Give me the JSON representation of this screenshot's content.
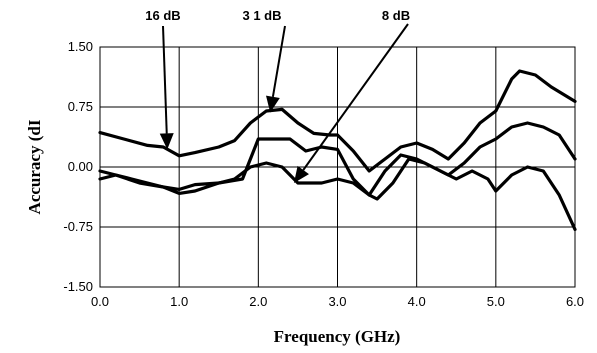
{
  "chart_data": {
    "type": "line",
    "title": "",
    "xlabel": "Frequency (GHz)",
    "ylabel": "Accuracy (dI",
    "xlim": [
      0,
      6
    ],
    "ylim": [
      -1.5,
      1.5
    ],
    "grid": true,
    "line_color": "#000000",
    "x_ticks": [
      "0.0",
      "1.0",
      "2.0",
      "3.0",
      "4.0",
      "5.0",
      "6.0"
    ],
    "y_ticks": [
      "1.50",
      "0.75",
      "0.00",
      "-0.75",
      "-1.50"
    ],
    "annotations": [
      {
        "text": "16 dB",
        "points_to": {
          "x": 0.85,
          "y": 0.22
        }
      },
      {
        "text": "3 1 dB",
        "points_to": {
          "x": 2.15,
          "y": 0.68
        }
      },
      {
        "text": "8 dB",
        "points_to": {
          "x": 2.45,
          "y": -0.2
        }
      }
    ],
    "series": [
      {
        "x": [
          0.0,
          0.3,
          0.6,
          0.8,
          1.0,
          1.2,
          1.5,
          1.7,
          1.9,
          2.1,
          2.3,
          2.5,
          2.7,
          2.9,
          3.0,
          3.2,
          3.4,
          3.6,
          3.8,
          4.0,
          4.2,
          4.4,
          4.6,
          4.8,
          5.0,
          5.2,
          5.3,
          5.5,
          5.7,
          6.0
        ],
        "values": [
          0.43,
          0.35,
          0.27,
          0.25,
          0.14,
          0.18,
          0.25,
          0.33,
          0.55,
          0.7,
          0.72,
          0.55,
          0.42,
          0.4,
          0.4,
          0.2,
          -0.05,
          0.1,
          0.25,
          0.3,
          0.22,
          0.1,
          0.3,
          0.55,
          0.7,
          1.1,
          1.2,
          1.15,
          1.0,
          0.82
        ]
      },
      {
        "x": [
          0.0,
          0.2,
          0.4,
          0.6,
          0.8,
          1.0,
          1.2,
          1.5,
          1.8,
          2.0,
          2.2,
          2.4,
          2.6,
          2.8,
          3.0,
          3.2,
          3.4,
          3.6,
          3.8,
          4.0,
          4.2,
          4.4,
          4.6,
          4.8,
          5.0,
          5.2,
          5.4,
          5.6,
          5.8,
          6.0
        ],
        "values": [
          -0.15,
          -0.1,
          -0.15,
          -0.2,
          -0.25,
          -0.33,
          -0.3,
          -0.2,
          -0.15,
          0.35,
          0.35,
          0.35,
          0.2,
          0.25,
          0.22,
          -0.15,
          -0.35,
          -0.05,
          0.15,
          0.1,
          0.0,
          -0.1,
          0.05,
          0.25,
          0.35,
          0.5,
          0.55,
          0.5,
          0.4,
          0.1
        ]
      },
      {
        "x": [
          0.0,
          0.2,
          0.5,
          0.8,
          1.0,
          1.2,
          1.5,
          1.7,
          1.9,
          2.1,
          2.3,
          2.5,
          2.8,
          3.0,
          3.2,
          3.4,
          3.5,
          3.7,
          3.9,
          4.1,
          4.3,
          4.5,
          4.7,
          4.9,
          5.0,
          5.2,
          5.4,
          5.6,
          5.8,
          6.0
        ],
        "values": [
          -0.05,
          -0.1,
          -0.2,
          -0.25,
          -0.28,
          -0.22,
          -0.2,
          -0.15,
          0.0,
          0.05,
          0.0,
          -0.2,
          -0.2,
          -0.15,
          -0.2,
          -0.35,
          -0.4,
          -0.2,
          0.1,
          0.05,
          -0.05,
          -0.15,
          -0.05,
          -0.15,
          -0.3,
          -0.1,
          0.0,
          -0.05,
          -0.35,
          -0.78
        ]
      }
    ]
  }
}
